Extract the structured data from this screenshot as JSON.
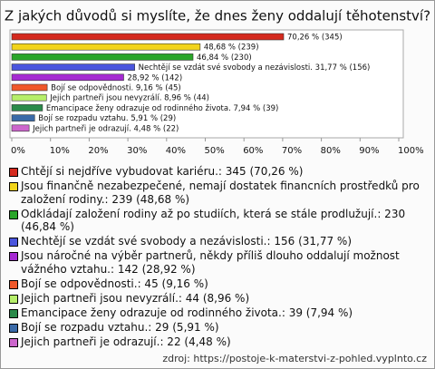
{
  "chart_data": {
    "type": "barh",
    "title": "Z jakých důvodů si myslíte, že dnes ženy oddalují těhotenství?",
    "categories": [
      "Chtějí si nejdříve vybudovat kariéru.: 345 (70,26 %)",
      "Jsou finančně nezabezpečené, nemají dostatek financních prostředků pro založení rodiny.: 239 (48,68 %)",
      "Odkládají založení rodiny až po studiích, která se stále prodlužují.: 230 (46,84 %)",
      "Nechtějí se vzdát své svobody a nezávislosti.: 156 (31,77 %)",
      "Jsou náročné na výběr partnerů, někdy příliš dlouho oddalují možnost vážného vztahu.: 142 (28,92 %)",
      "Bojí se odpovědnosti.: 45 (9,16 %)",
      "Jejich partneři jsou nevyzrálí.: 44 (8,96 %)",
      "Emancipace ženy odrazuje od rodinného života.: 39 (7,94 %)",
      "Bojí se rozpadu vztahu.: 29 (5,91 %)",
      "Jejich partneři je odrazují.: 22 (4,48 %)"
    ],
    "values": [
      70.26,
      48.68,
      46.84,
      31.77,
      28.92,
      9.16,
      8.96,
      7.94,
      5.91,
      4.48
    ],
    "value_labels": [
      "70,26 % (345)",
      "48,68 % (239)",
      "46,84 % (230)",
      "Nechtějí se vzdát své svobody a nezávislosti. 31,77 % (156)",
      "28,92 % (142)",
      "Bojí se odpovědnosti. 9,16 % (45)",
      "Jejich partneři jsou nevyzrálí. 8,96 % (44)",
      "Emancipace ženy odrazuje od rodinného života. 7,94 % (39)",
      "Bojí se rozpadu vztahu. 5,91 % (29)",
      "Jejich partneři je odrazují. 4,48 % (22)"
    ],
    "colors": [
      "#d42a1e",
      "#f2d41a",
      "#2aa52a",
      "#4a55dd",
      "#a52ad2",
      "#f0582a",
      "#b6ee6a",
      "#2a8a4a",
      "#3a6aa8",
      "#cc66cc"
    ],
    "xlim": [
      0,
      100
    ],
    "xticks": [
      {
        "value": 0,
        "label": "0%"
      },
      {
        "value": 10,
        "label": "10%"
      },
      {
        "value": 20,
        "label": "20%"
      },
      {
        "value": 30,
        "label": "30%"
      },
      {
        "value": 40,
        "label": "40%"
      },
      {
        "value": 50,
        "label": "50%"
      },
      {
        "value": 60,
        "label": "60%"
      },
      {
        "value": 70,
        "label": "70%"
      },
      {
        "value": 80,
        "label": "80%"
      },
      {
        "value": 90,
        "label": "90%"
      },
      {
        "value": 100,
        "label": "100%"
      }
    ],
    "source": "zdroj: https://postoje-k-materstvi-z-pohled.vyplnto.cz"
  }
}
